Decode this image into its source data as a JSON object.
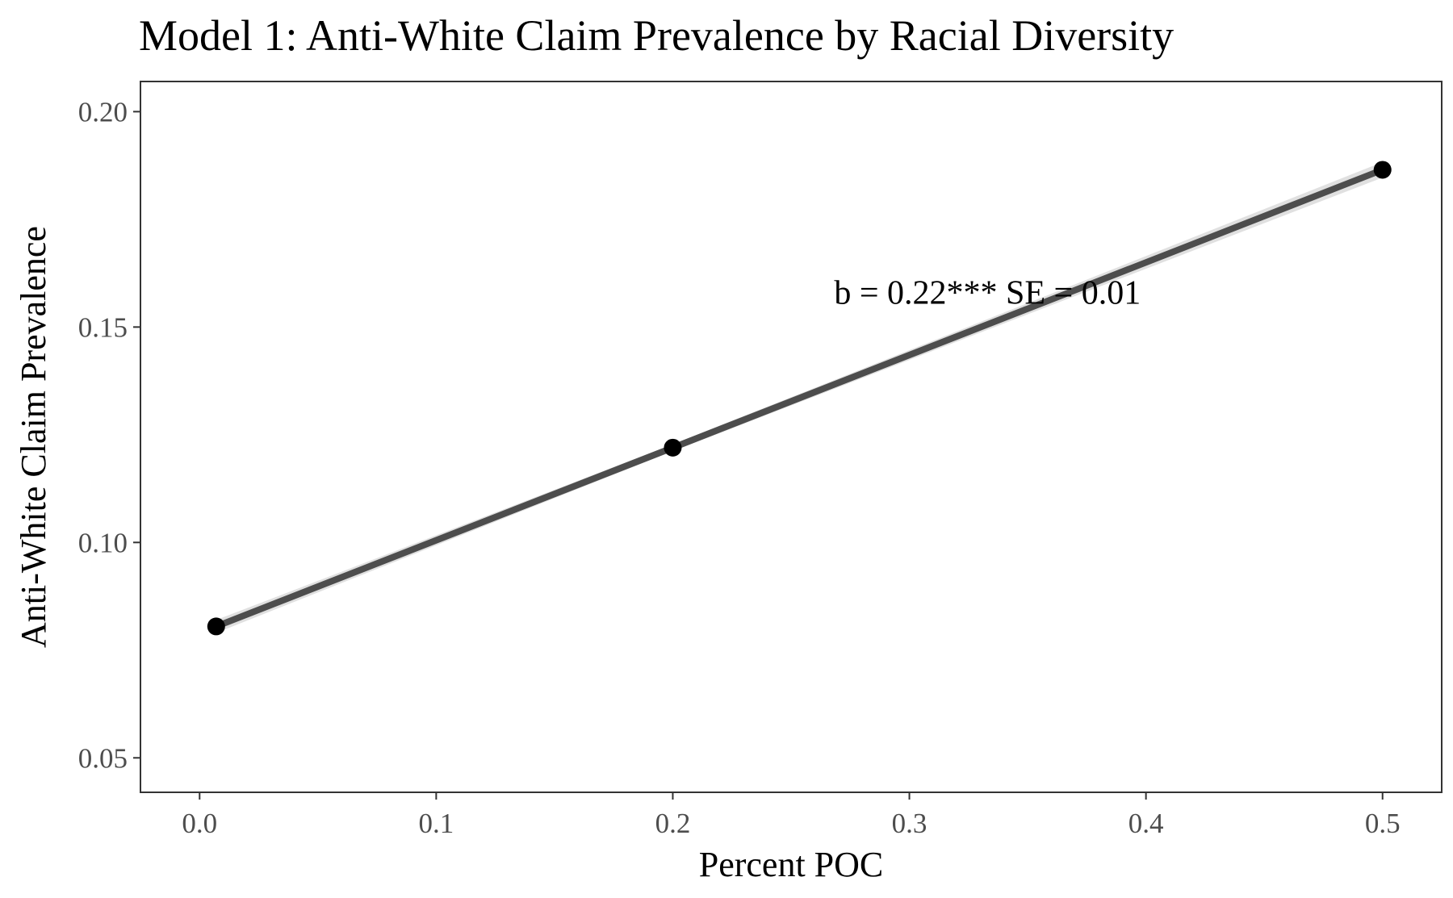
{
  "chart_data": {
    "type": "line",
    "title": "Model 1: Anti-White Claim Prevalence by Racial Diversity",
    "xlabel": "Percent POC",
    "ylabel": "Anti-White Claim Prevalence",
    "xlim": [
      -0.025,
      0.525
    ],
    "ylim": [
      0.042,
      0.207
    ],
    "x_ticks": [
      0.0,
      0.1,
      0.2,
      0.3,
      0.4,
      0.5
    ],
    "x_tick_labels": [
      "0.0",
      "0.1",
      "0.2",
      "0.3",
      "0.4",
      "0.5"
    ],
    "y_ticks": [
      0.05,
      0.1,
      0.15,
      0.2
    ],
    "y_tick_labels": [
      "0.05",
      "0.10",
      "0.15",
      "0.20"
    ],
    "grid": false,
    "series": [
      {
        "x": [
          0.007,
          0.2,
          0.5
        ],
        "y": [
          0.0805,
          0.122,
          0.1865
        ],
        "ci_halfwidth": [
          0.0015,
          0.0008,
          0.0018
        ]
      }
    ],
    "annotation": {
      "text": "b = 0.22*** SE = 0.01",
      "x": 0.333,
      "y": 0.158
    },
    "colors": {
      "line": "#4d4d4d",
      "ribbon": "#e0e0e0",
      "points": "#000000",
      "panel_border": "#333333"
    }
  }
}
